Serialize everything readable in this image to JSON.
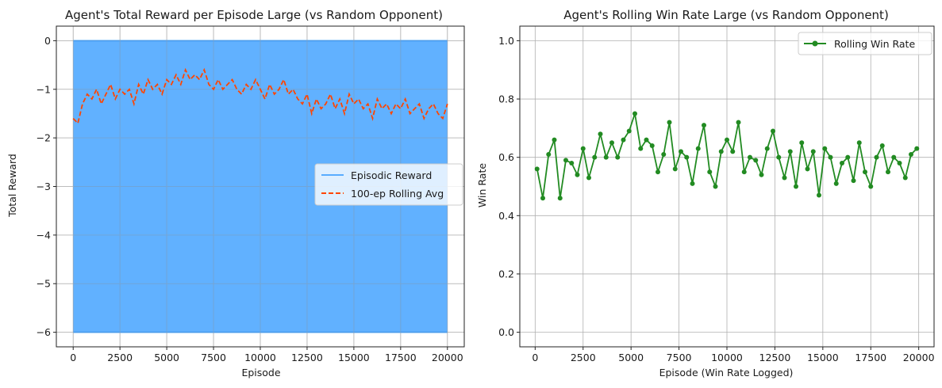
{
  "chart_data": [
    {
      "type": "line",
      "title": "Agent's Total Reward per Episode Large (vs Random Opponent)",
      "xlabel": "Episode",
      "ylabel": "Total Reward",
      "xlim": [
        -900,
        20900
      ],
      "ylim": [
        -6.3,
        0.3
      ],
      "xticks": [
        "0",
        "2500",
        "5000",
        "7500",
        "10000",
        "12500",
        "15000",
        "17500",
        "20000"
      ],
      "yticks": [
        "0",
        "−1",
        "−2",
        "−3",
        "−4",
        "−5",
        "−6"
      ],
      "grid": true,
      "legend_position": "center-right",
      "series": [
        {
          "name": "Episodic Reward",
          "style": "solid",
          "color": "#1e90ff",
          "fill_range": [
            -6,
            0
          ],
          "x_range": [
            0,
            20000
          ]
        },
        {
          "name": "100-ep Rolling Avg",
          "style": "dashed",
          "color": "#ff4500",
          "x": [
            0,
            250,
            500,
            750,
            1000,
            1250,
            1500,
            1750,
            2000,
            2250,
            2500,
            2750,
            3000,
            3250,
            3500,
            3750,
            4000,
            4250,
            4500,
            4750,
            5000,
            5250,
            5500,
            5750,
            6000,
            6250,
            6500,
            6750,
            7000,
            7250,
            7500,
            7750,
            8000,
            8250,
            8500,
            8750,
            9000,
            9250,
            9500,
            9750,
            10000,
            10250,
            10500,
            10750,
            11000,
            11250,
            11500,
            11750,
            12000,
            12250,
            12500,
            12750,
            13000,
            13250,
            13500,
            13750,
            14000,
            14250,
            14500,
            14750,
            15000,
            15250,
            15500,
            15750,
            16000,
            16250,
            16500,
            16750,
            17000,
            17250,
            17500,
            17750,
            18000,
            18250,
            18500,
            18750,
            19000,
            19250,
            19500,
            19750,
            20000
          ],
          "values": [
            -1.6,
            -1.7,
            -1.3,
            -1.1,
            -1.2,
            -1.0,
            -1.3,
            -1.1,
            -0.9,
            -1.2,
            -1.0,
            -1.1,
            -1.0,
            -1.3,
            -0.9,
            -1.1,
            -0.8,
            -1.0,
            -0.9,
            -1.1,
            -0.8,
            -0.9,
            -0.7,
            -0.9,
            -0.6,
            -0.8,
            -0.7,
            -0.8,
            -0.6,
            -0.9,
            -1.0,
            -0.8,
            -1.0,
            -0.9,
            -0.8,
            -1.0,
            -1.1,
            -0.9,
            -1.0,
            -0.8,
            -1.0,
            -1.2,
            -0.9,
            -1.1,
            -1.0,
            -0.8,
            -1.1,
            -1.0,
            -1.2,
            -1.3,
            -1.1,
            -1.5,
            -1.2,
            -1.4,
            -1.3,
            -1.1,
            -1.4,
            -1.2,
            -1.5,
            -1.1,
            -1.3,
            -1.2,
            -1.4,
            -1.3,
            -1.6,
            -1.2,
            -1.4,
            -1.3,
            -1.5,
            -1.3,
            -1.4,
            -1.2,
            -1.5,
            -1.4,
            -1.3,
            -1.6,
            -1.4,
            -1.3,
            -1.5,
            -1.6,
            -1.3
          ]
        }
      ]
    },
    {
      "type": "line",
      "title": "Agent's Rolling Win Rate Large (vs Random Opponent)",
      "xlabel": "Episode (Win Rate Logged)",
      "ylabel": "Win Rate",
      "xlim": [
        -800,
        20800
      ],
      "ylim": [
        -0.05,
        1.05
      ],
      "xticks": [
        "0",
        "2500",
        "5000",
        "7500",
        "10000",
        "12500",
        "15000",
        "17500",
        "20000"
      ],
      "yticks": [
        "0.0",
        "0.2",
        "0.4",
        "0.6",
        "0.8",
        "1.0"
      ],
      "grid": true,
      "legend_position": "top-right",
      "series": [
        {
          "name": "Rolling Win Rate",
          "color": "#228b22",
          "marker": "circle",
          "x": [
            100,
            400,
            700,
            1000,
            1300,
            1600,
            1900,
            2200,
            2500,
            2800,
            3100,
            3400,
            3700,
            4000,
            4300,
            4600,
            4900,
            5200,
            5500,
            5800,
            6100,
            6400,
            6700,
            7000,
            7300,
            7600,
            7900,
            8200,
            8500,
            8800,
            9100,
            9400,
            9700,
            10000,
            10300,
            10600,
            10900,
            11200,
            11500,
            11800,
            12100,
            12400,
            12700,
            13000,
            13300,
            13600,
            13900,
            14200,
            14500,
            14800,
            15100,
            15400,
            15700,
            16000,
            16300,
            16600,
            16900,
            17200,
            17500,
            17800,
            18100,
            18400,
            18700,
            19000,
            19300,
            19600,
            19900
          ],
          "values": [
            0.56,
            0.46,
            0.61,
            0.66,
            0.46,
            0.59,
            0.58,
            0.54,
            0.63,
            0.53,
            0.6,
            0.68,
            0.6,
            0.65,
            0.6,
            0.66,
            0.69,
            0.75,
            0.63,
            0.66,
            0.64,
            0.55,
            0.61,
            0.72,
            0.56,
            0.62,
            0.6,
            0.51,
            0.63,
            0.71,
            0.55,
            0.5,
            0.62,
            0.66,
            0.62,
            0.72,
            0.55,
            0.6,
            0.59,
            0.54,
            0.63,
            0.69,
            0.6,
            0.53,
            0.62,
            0.5,
            0.65,
            0.56,
            0.62,
            0.47,
            0.63,
            0.6,
            0.51,
            0.58,
            0.6,
            0.52,
            0.65,
            0.55,
            0.5,
            0.6,
            0.64,
            0.55,
            0.6,
            0.58,
            0.53,
            0.61,
            0.63
          ]
        }
      ]
    }
  ]
}
